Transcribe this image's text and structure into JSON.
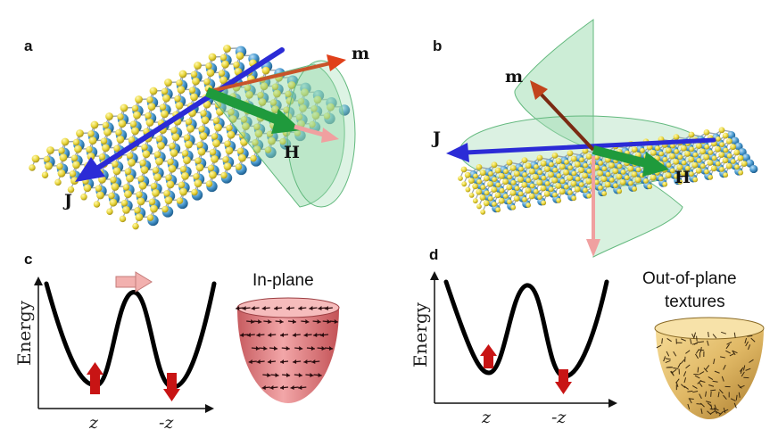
{
  "panels": {
    "a": {
      "letter": "a",
      "labels": {
        "m": "m",
        "H": "H",
        "J": "J"
      }
    },
    "b": {
      "letter": "b",
      "labels": {
        "m": "m",
        "H": "H",
        "J": "J"
      }
    },
    "c": {
      "letter": "c",
      "ylabel": "Energy",
      "ticks": [
        "z",
        "-z"
      ],
      "caption": "In-plane"
    },
    "d": {
      "letter": "d",
      "ylabel": "Energy",
      "ticks": [
        "z",
        "-z"
      ],
      "caption_lines": [
        "Out-of-plane",
        "textures"
      ]
    }
  },
  "colors": {
    "current": "#2b2bd6",
    "field": "#1f9a3c",
    "magnetization": "#d4461e",
    "cone": "#8fd6a4",
    "yellow_atom": "#e8d53a",
    "blue_atom": "#4a9ad0",
    "spin_arrow": "#c81414",
    "in_plane_bowl": "#e7898c",
    "out_plane_bowl": "#e0b865"
  }
}
